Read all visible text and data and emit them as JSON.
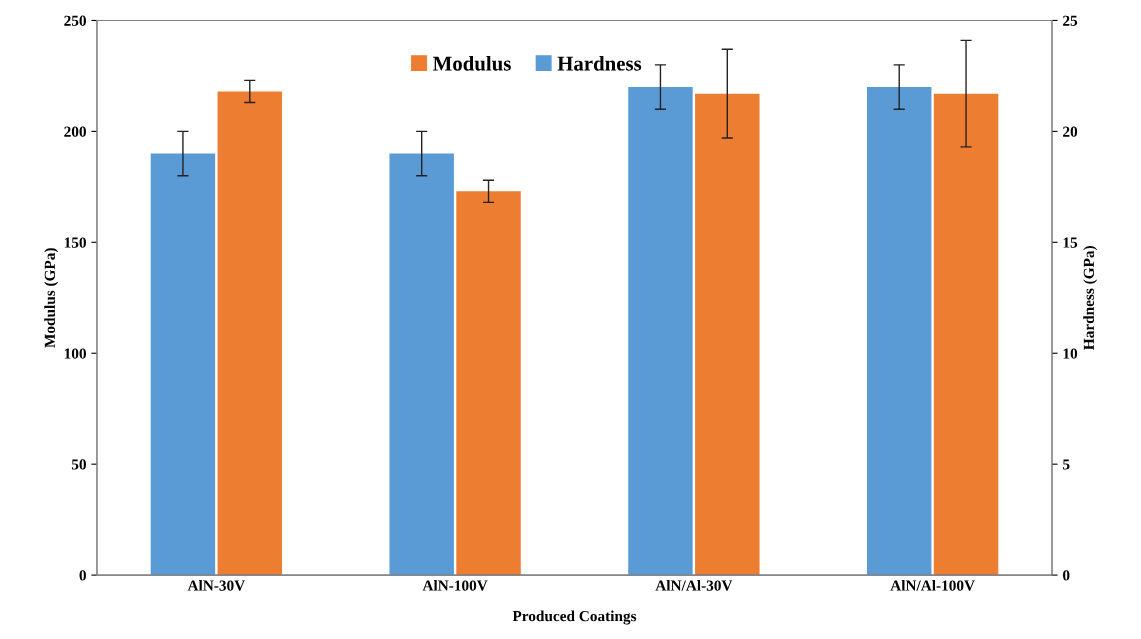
{
  "chart_data": {
    "type": "bar",
    "xlabel": "Produced Coatings",
    "ylabel": "Modulus (GPa)",
    "y2label": "Hardness (GPa)",
    "categories": [
      "AlN-30V",
      "AlN-100V",
      "AlN/Al-30V",
      "AlN/Al-100V"
    ],
    "series": [
      {
        "name": "Hardness",
        "color": "#5b9bd5",
        "axis": "y2",
        "values": [
          19,
          19,
          22,
          22
        ],
        "errors": [
          1,
          1,
          1,
          1
        ]
      },
      {
        "name": "Modulus",
        "color": "#ed7d31",
        "values": [
          218,
          173,
          217,
          217
        ],
        "errors": [
          5,
          5,
          20,
          24
        ]
      }
    ],
    "ylim": [
      0,
      250
    ],
    "yticks": [
      0,
      50,
      100,
      150,
      200,
      250
    ],
    "y2lim": [
      0,
      25
    ],
    "y2ticks": [
      0,
      5,
      10,
      15,
      20,
      25
    ],
    "legend": "top",
    "grid": false
  }
}
